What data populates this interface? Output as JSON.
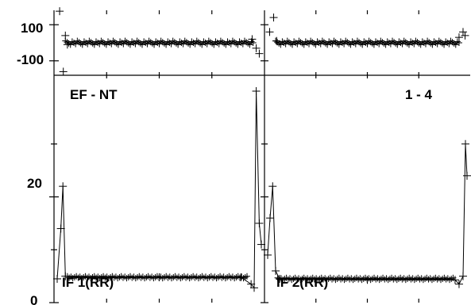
{
  "chart_data": {
    "type": "line",
    "marker": "plus",
    "y_axis_top": {
      "ylim": [
        -180,
        180
      ],
      "ticks": [
        {
          "value": 100,
          "label": "100"
        },
        {
          "value": -100,
          "label": "-100"
        }
      ]
    },
    "y_axis_bottom": {
      "ylim": [
        0,
        43
      ],
      "ticks": [
        {
          "value": 20,
          "label": "20"
        },
        {
          "value": 0,
          "label": "0"
        }
      ]
    },
    "panels": [
      {
        "top_series": {
          "baseline": 0,
          "spikes": [
            {
              "x": 0.012,
              "y": 175
            },
            {
              "x": 0.04,
              "y": 40
            },
            {
              "x": 0.05,
              "y": -10
            },
            {
              "x": 0.03,
              "y": -160
            },
            {
              "x": 0.955,
              "y": 20
            },
            {
              "x": 0.975,
              "y": -30
            },
            {
              "x": 0.99,
              "y": -60
            }
          ]
        },
        "bottom_series": {
          "label_top_left": "EF - NT",
          "label_top_right": "",
          "label_bottom": "IF 1(RR)",
          "points": [
            {
              "x": 0.0,
              "y": 4.5
            },
            {
              "x": 0.018,
              "y": 14
            },
            {
              "x": 0.028,
              "y": 22
            },
            {
              "x": 0.04,
              "y": 5.0
            },
            {
              "x": 0.5,
              "y": 4.8
            },
            {
              "x": 0.9,
              "y": 4.8
            },
            {
              "x": 0.95,
              "y": 3.5
            },
            {
              "x": 0.965,
              "y": 2.8
            },
            {
              "x": 0.975,
              "y": 40
            },
            {
              "x": 0.99,
              "y": 15
            },
            {
              "x": 1.0,
              "y": 11
            }
          ]
        }
      },
      {
        "top_series": {
          "baseline": 0,
          "spikes": [
            {
              "x": 0.01,
              "y": 60
            },
            {
              "x": 0.03,
              "y": 140
            },
            {
              "x": 0.045,
              "y": 10
            },
            {
              "x": 0.96,
              "y": 30
            },
            {
              "x": 0.98,
              "y": 60
            },
            {
              "x": 0.99,
              "y": 40
            }
          ]
        },
        "bottom_series": {
          "label_top_left": "",
          "label_top_right": "1 - 4",
          "label_bottom": "IF 2(RR)",
          "points": [
            {
              "x": 0.0,
              "y": 9
            },
            {
              "x": 0.012,
              "y": 16
            },
            {
              "x": 0.025,
              "y": 22
            },
            {
              "x": 0.04,
              "y": 6
            },
            {
              "x": 0.06,
              "y": 4.5
            },
            {
              "x": 0.5,
              "y": 4.3
            },
            {
              "x": 0.94,
              "y": 4.3
            },
            {
              "x": 0.96,
              "y": 3.5
            },
            {
              "x": 0.98,
              "y": 5
            },
            {
              "x": 0.992,
              "y": 30
            },
            {
              "x": 1.0,
              "y": 24
            }
          ]
        }
      }
    ]
  }
}
